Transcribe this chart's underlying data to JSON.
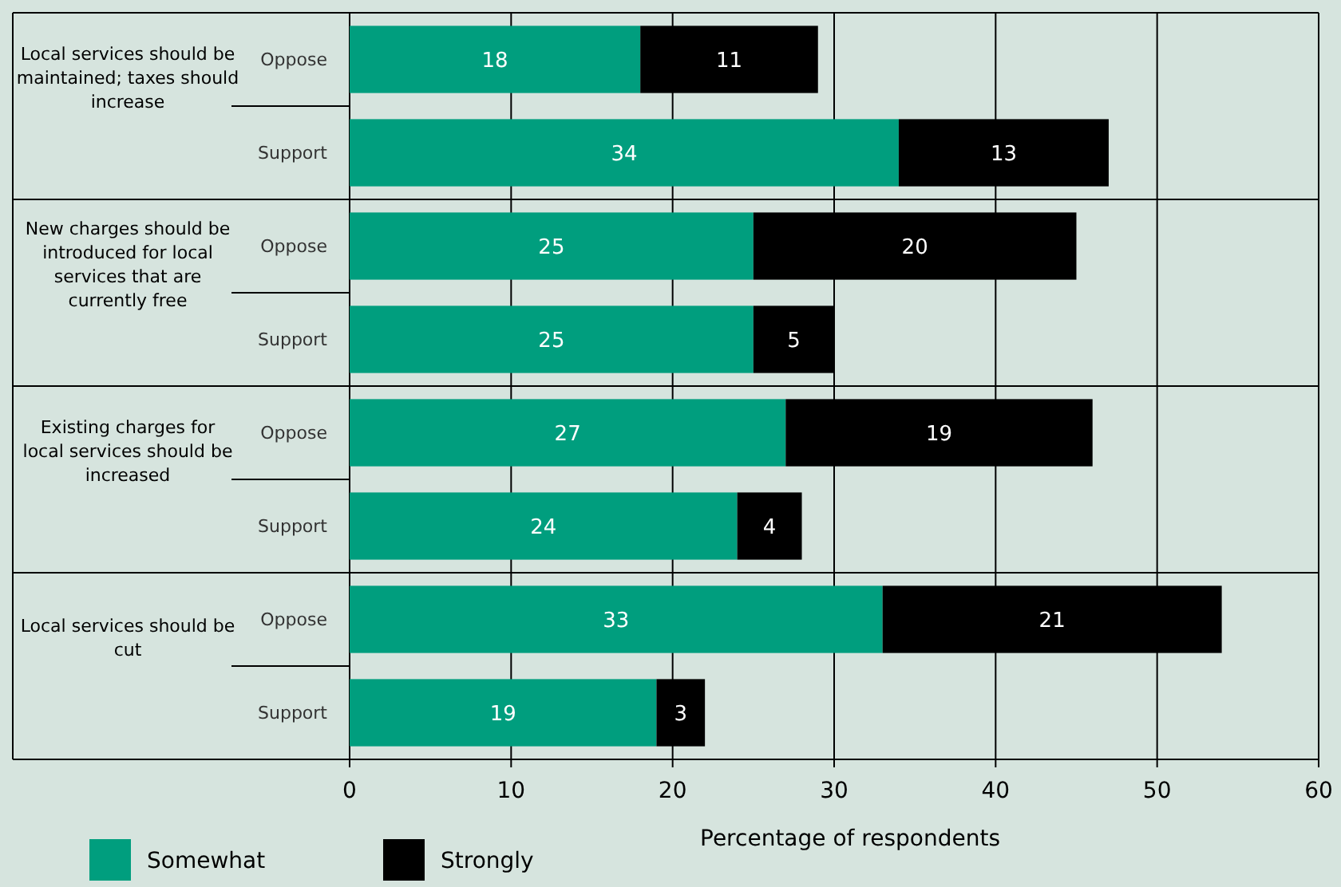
{
  "chart_data": {
    "type": "bar",
    "orientation": "horizontal",
    "stacked": true,
    "data_labels": true,
    "grid": "x",
    "legend": "bottom left",
    "xlabel": "Percentage of respondents",
    "categories": [
      "Oppose",
      "Support",
      "Oppose",
      "Support",
      "Oppose",
      "Support",
      "Oppose",
      "Support"
    ],
    "annotations": [
      "Local services should be maintained; taxes should increase",
      "New charges should be introduced for local services that are currently free",
      "Existing charges for local services should be increased",
      "Local services should be cut"
    ],
    "series": [
      {
        "name": "Somewhat",
        "color": "#009e7e",
        "values": [
          18,
          34,
          25,
          25,
          27,
          24,
          33,
          19
        ]
      },
      {
        "name": "Strongly",
        "color": "#000000",
        "values": [
          11,
          13,
          20,
          5,
          19,
          4,
          21,
          3
        ]
      }
    ],
    "xlim": [
      0,
      60
    ],
    "xticks": [
      0,
      10,
      20,
      30,
      40,
      50,
      60
    ]
  }
}
